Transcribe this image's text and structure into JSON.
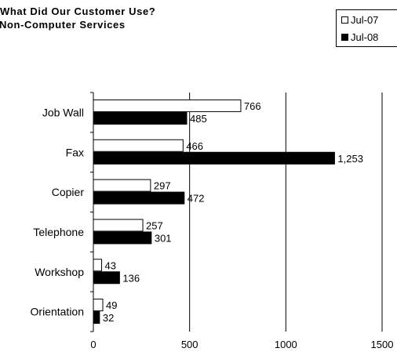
{
  "chart_data": {
    "type": "bar",
    "orientation": "horizontal",
    "title": [
      "What Did Our Customer Use?",
      "Non-Computer Services"
    ],
    "categories": [
      "Job Wall",
      "Fax",
      "Copier",
      "Telephone",
      "Workshop",
      "Orientation"
    ],
    "series": [
      {
        "name": "Jul-07",
        "fill": "#ffffff",
        "values": [
          766,
          466,
          297,
          257,
          43,
          49
        ],
        "labels": [
          "766",
          "466",
          "297",
          "257",
          "43",
          "49"
        ]
      },
      {
        "name": "Jul-08",
        "fill": "#000000",
        "values": [
          485,
          1253,
          472,
          301,
          136,
          32
        ],
        "labels": [
          "485",
          "1,253",
          "472",
          "301",
          "136",
          "32"
        ]
      }
    ],
    "xlim": [
      0,
      1500
    ],
    "xticks": [
      0,
      500,
      1000,
      1500
    ],
    "xticklabels": [
      "0",
      "500",
      "1000",
      "1500"
    ],
    "grid": "vertical",
    "legend_position": "top-right"
  }
}
